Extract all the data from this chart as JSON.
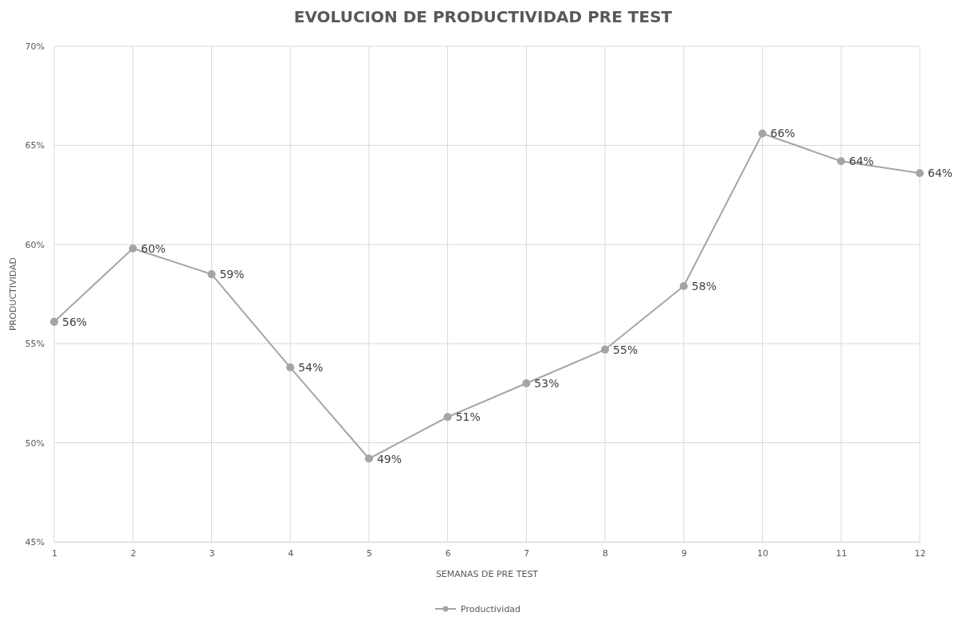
{
  "chart_data": {
    "type": "line",
    "title": "EVOLUCION DE PRODUCTIVIDAD PRE TEST",
    "xlabel": "SEMANAS DE PRE TEST",
    "ylabel": "PRODUCTIVIDAD",
    "x": [
      1,
      2,
      3,
      4,
      5,
      6,
      7,
      8,
      9,
      10,
      11,
      12
    ],
    "series": [
      {
        "name": "Productividad",
        "color": "#a5a5a5",
        "values": [
          56.1,
          59.8,
          58.5,
          53.8,
          49.2,
          51.3,
          53.0,
          54.7,
          57.9,
          65.6,
          64.2,
          63.6
        ],
        "value_labels": [
          "56%",
          "60%",
          "59%",
          "54%",
          "49%",
          "51%",
          "53%",
          "55%",
          "58%",
          "66%",
          "64%",
          "64%"
        ]
      }
    ],
    "xlim": [
      1,
      12
    ],
    "xticks": [
      1,
      2,
      3,
      4,
      5,
      6,
      7,
      8,
      9,
      10,
      11,
      12
    ],
    "ylim": [
      45,
      70
    ],
    "yticks": [
      {
        "value": 45,
        "label": "45%"
      },
      {
        "value": 50,
        "label": "50%"
      },
      {
        "value": 55,
        "label": "55%"
      },
      {
        "value": 60,
        "label": "60%"
      },
      {
        "value": 65,
        "label": "65%"
      },
      {
        "value": 70,
        "label": "70%"
      }
    ],
    "grid": true,
    "legend": "bottom",
    "marker": "circle",
    "line_style": "solid"
  }
}
